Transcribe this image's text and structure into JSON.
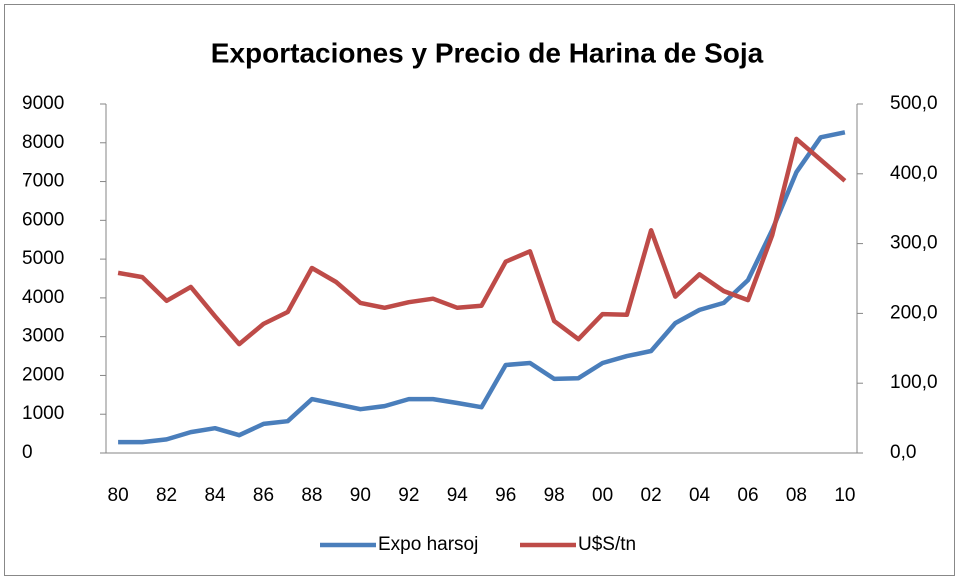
{
  "chart_data": {
    "type": "line",
    "title": "Exportaciones y Precio de Harina de Soja",
    "categories": [
      "80",
      null,
      "82",
      null,
      "84",
      null,
      "86",
      null,
      "88",
      null,
      "90",
      null,
      "92",
      null,
      "94",
      null,
      "96",
      null,
      "98",
      null,
      "00",
      null,
      "02",
      null,
      "04",
      null,
      "06",
      null,
      "08",
      null,
      "10"
    ],
    "series": [
      {
        "name": "Expo harsoj",
        "color": "#4a7ebb",
        "axis": "y",
        "values": [
          280,
          280,
          350,
          540,
          640,
          460,
          750,
          820,
          1390,
          1260,
          1130,
          1210,
          1390,
          1390,
          1290,
          1180,
          2270,
          2320,
          1910,
          1930,
          2320,
          2500,
          2630,
          3350,
          3690,
          3870,
          4460,
          5750,
          7240,
          8140,
          8270
        ]
      },
      {
        "name": "U$S/tn",
        "color": "#be4b48",
        "axis": "y2",
        "values": [
          258,
          252,
          218,
          238,
          196,
          156,
          185,
          202,
          265,
          245,
          215,
          208,
          216,
          221,
          208,
          211,
          274,
          289,
          189,
          163,
          199,
          198,
          319,
          224,
          256,
          232,
          219,
          312,
          450,
          420,
          390
        ]
      }
    ],
    "ylim": [
      0,
      9000
    ],
    "yticks": [
      0,
      1000,
      2000,
      3000,
      4000,
      5000,
      6000,
      7000,
      8000,
      9000
    ],
    "y2lim": [
      0,
      500
    ],
    "y2ticks": [
      {
        "value": 0,
        "label": "0,0"
      },
      {
        "value": 100,
        "label": "100,0"
      },
      {
        "value": 200,
        "label": "200,0"
      },
      {
        "value": 300,
        "label": "300,0"
      },
      {
        "value": 400,
        "label": "400,0"
      },
      {
        "value": 500,
        "label": "500,0"
      }
    ],
    "grid": false,
    "legend": "bottom"
  }
}
